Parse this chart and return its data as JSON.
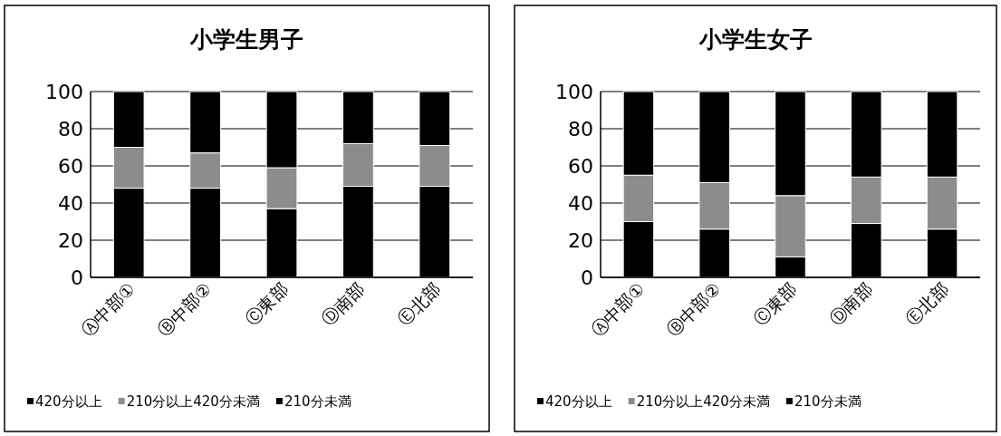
{
  "chart_data": [
    {
      "type": "bar",
      "title": "小学生男子",
      "stacked": true,
      "categories": [
        "Ⓐ中部①",
        "Ⓑ中部②",
        "Ⓒ東部",
        "Ⓓ南部",
        "Ⓔ北部"
      ],
      "series": [
        {
          "name": "420分以上",
          "color": "#000000",
          "values": [
            48,
            48,
            37,
            49,
            49
          ]
        },
        {
          "name": "210分以上420分未満",
          "color": "#8c8c8c",
          "values": [
            22,
            19,
            22,
            23,
            22
          ]
        },
        {
          "name": "210分未満",
          "color": "#000000",
          "values": [
            30,
            33,
            41,
            28,
            29
          ]
        }
      ],
      "ylim": [
        0,
        100
      ],
      "yticks": [
        0,
        20,
        40,
        60,
        80,
        100
      ],
      "grid": "y",
      "legend": "bottom"
    },
    {
      "type": "bar",
      "title": "小学生女子",
      "stacked": true,
      "categories": [
        "Ⓐ中部①",
        "Ⓑ中部②",
        "Ⓒ東部",
        "Ⓓ南部",
        "Ⓔ北部"
      ],
      "series": [
        {
          "name": "420分以上",
          "color": "#000000",
          "values": [
            30,
            26,
            11,
            29,
            26
          ]
        },
        {
          "name": "210分以上420分未満",
          "color": "#8c8c8c",
          "values": [
            25,
            25,
            33,
            25,
            28
          ]
        },
        {
          "name": "210分未満",
          "color": "#000000",
          "values": [
            45,
            49,
            56,
            46,
            46
          ]
        }
      ],
      "ylim": [
        0,
        100
      ],
      "yticks": [
        0,
        20,
        40,
        60,
        80,
        100
      ],
      "grid": "y",
      "legend": "bottom"
    }
  ]
}
